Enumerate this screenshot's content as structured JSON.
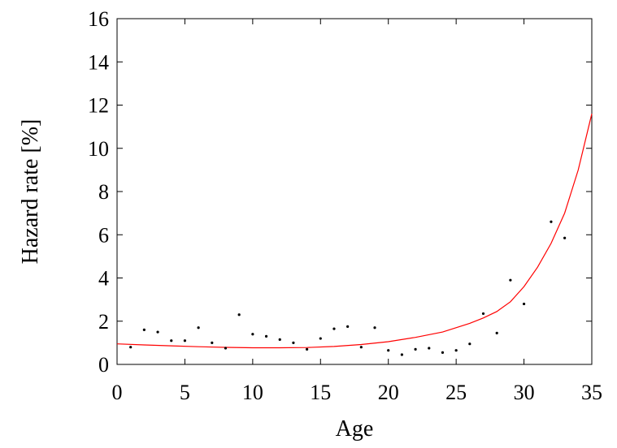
{
  "chart_data": {
    "type": "scatter",
    "title": "",
    "xlabel": "Age",
    "ylabel": "Hazard rate [%]",
    "xlim": [
      0,
      35
    ],
    "ylim": [
      0,
      16
    ],
    "xticks": [
      0,
      5,
      10,
      15,
      20,
      25,
      30,
      35
    ],
    "yticks": [
      0,
      2,
      4,
      6,
      8,
      10,
      12,
      14,
      16
    ],
    "grid": false,
    "legend": "none",
    "series": [
      {
        "kind": "points",
        "color": "#000000",
        "x": [
          1,
          2,
          3,
          4,
          5,
          6,
          7,
          8,
          9,
          10,
          11,
          12,
          13,
          14,
          15,
          16,
          17,
          18,
          19,
          20,
          21,
          22,
          23,
          24,
          25,
          26,
          27,
          28,
          29,
          30,
          32,
          33
        ],
        "y": [
          0.8,
          1.6,
          1.5,
          1.1,
          1.1,
          1.7,
          1.0,
          0.75,
          2.3,
          1.4,
          1.3,
          1.15,
          1.0,
          0.7,
          1.2,
          1.65,
          1.75,
          0.8,
          1.7,
          0.65,
          0.45,
          0.7,
          0.75,
          0.55,
          0.65,
          0.95,
          2.35,
          1.45,
          3.9,
          2.8,
          6.6,
          5.85
        ]
      },
      {
        "kind": "curve",
        "color": "#ff0000",
        "x": [
          0,
          2,
          4,
          6,
          8,
          10,
          12,
          14,
          16,
          18,
          20,
          22,
          24,
          26,
          27,
          28,
          29,
          30,
          31,
          32,
          33,
          34,
          35
        ],
        "y": [
          0.95,
          0.9,
          0.86,
          0.82,
          0.79,
          0.77,
          0.77,
          0.78,
          0.83,
          0.92,
          1.05,
          1.25,
          1.5,
          1.9,
          2.15,
          2.45,
          2.9,
          3.6,
          4.5,
          5.6,
          7.0,
          9.0,
          11.6
        ]
      }
    ]
  }
}
